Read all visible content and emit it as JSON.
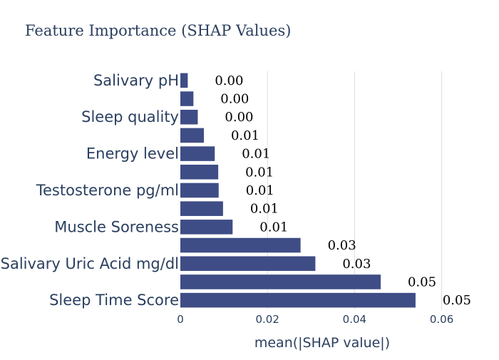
{
  "chart_data": {
    "type": "bar",
    "orientation": "horizontal",
    "title": "Feature Importance (SHAP Values)",
    "xlabel": "mean(|SHAP value|)",
    "ylabel": "",
    "xlim": [
      0,
      0.064
    ],
    "xticks": [
      {
        "value": 0,
        "label": "0"
      },
      {
        "value": 0.02,
        "label": "0.02"
      },
      {
        "value": 0.04,
        "label": "0.04"
      },
      {
        "value": 0.06,
        "label": "0.06"
      }
    ],
    "grid": true,
    "bar_color": "#3f4d86",
    "categories": [
      "Salivary pH",
      "",
      "Sleep quality",
      "",
      "Energy level",
      "",
      "Testosterone pg/ml",
      "",
      "Muscle Soreness",
      "",
      "Salivary Uric Acid mg/dl",
      "",
      "Sleep Time Score"
    ],
    "values": [
      0.0017,
      0.003,
      0.004,
      0.0054,
      0.0079,
      0.0087,
      0.0088,
      0.0098,
      0.012,
      0.0276,
      0.031,
      0.046,
      0.054
    ],
    "value_labels": [
      "0.00",
      "0.00",
      "0.00",
      "0.01",
      "0.01",
      "0.01",
      "0.01",
      "0.01",
      "0.01",
      "0.03",
      "0.03",
      "0.05",
      "0.05"
    ]
  }
}
